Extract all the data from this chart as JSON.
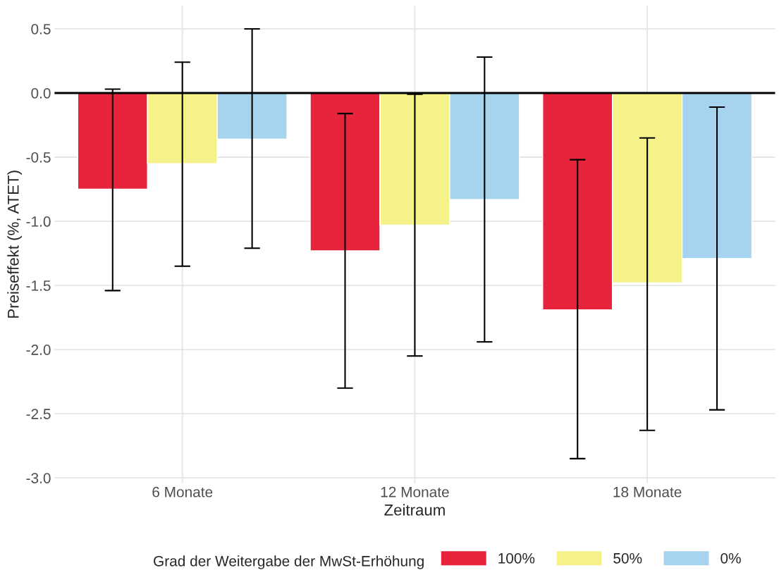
{
  "chart_data": {
    "type": "bar",
    "xlabel": "Zeitraum",
    "ylabel": "Preiseffekt (%, ATET)",
    "legend_title": "Grad der Weitergabe der MwSt-Erhöhung",
    "categories": [
      "6 Monate",
      "12 Monate",
      "18 Monate"
    ],
    "series": [
      {
        "name": "100%",
        "color": "#e8233c",
        "values": [
          -0.75,
          -1.23,
          -1.69
        ],
        "errors": [
          [
            -1.54,
            0.03
          ],
          [
            -2.3,
            -0.16
          ],
          [
            -2.85,
            -0.52
          ]
        ]
      },
      {
        "name": "50%",
        "color": "#f5f28a",
        "values": [
          -0.55,
          -1.03,
          -1.48
        ],
        "errors": [
          [
            -1.35,
            0.24
          ],
          [
            -2.05,
            -0.01
          ],
          [
            -2.63,
            -0.35
          ]
        ]
      },
      {
        "name": "0%",
        "color": "#a6d4ee",
        "values": [
          -0.36,
          -0.83,
          -1.29
        ],
        "errors": [
          [
            -1.21,
            0.5
          ],
          [
            -1.94,
            0.28
          ],
          [
            -2.47,
            -0.11
          ]
        ]
      }
    ],
    "ylim": [
      -3.04,
      0.68
    ],
    "yticks": [
      {
        "value": -3.0,
        "label": "-3.0"
      },
      {
        "value": -2.5,
        "label": "-2.5"
      },
      {
        "value": -2.0,
        "label": "-2.0"
      },
      {
        "value": -1.5,
        "label": "-1.5"
      },
      {
        "value": -1.0,
        "label": "-1.0"
      },
      {
        "value": -0.5,
        "label": "-0.5"
      },
      {
        "value": 0.0,
        "label": "0.0"
      },
      {
        "value": 0.5,
        "label": "0.5"
      }
    ],
    "ref_lines": [
      {
        "axis": "y",
        "value": 0,
        "color": "#000000"
      }
    ],
    "grid": true,
    "legend": "bottom"
  }
}
